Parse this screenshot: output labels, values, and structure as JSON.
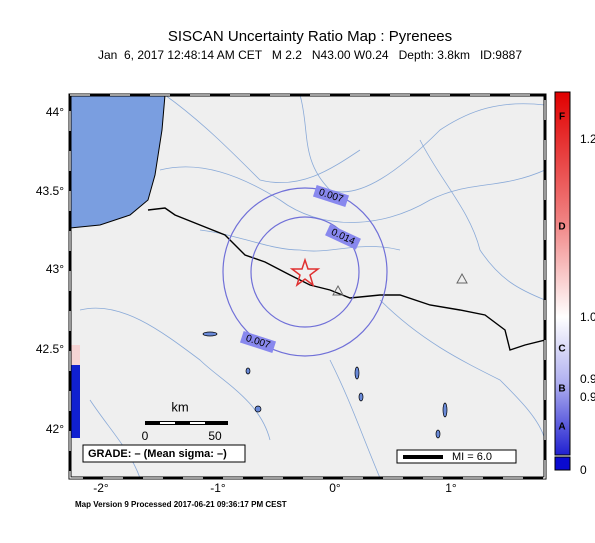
{
  "header": {
    "title": "SISCAN Uncertainty Ratio Map : Pyrenees",
    "subtitle": "Jan  6, 2017 12:48:14 AM CET   M 2.2   N43.00 W0.24   Depth: 3.8km   ID:9887"
  },
  "map": {
    "lat_labels": [
      "44°",
      "43.5°",
      "43°",
      "42.5°",
      "42°"
    ],
    "lon_labels": [
      "-2°",
      "-1°",
      "0°",
      "1°"
    ],
    "contour_labels": [
      "0.007",
      "0.014",
      "0.007"
    ],
    "scale": {
      "unit": "km",
      "start": "0",
      "end": "50"
    },
    "grade": "GRADE: – (Mean sigma: –)",
    "intensity_legend": "MI = 6.0"
  },
  "colorbar": {
    "letters": [
      "F",
      "D",
      "C",
      "B",
      "A"
    ],
    "values": [
      "1.2",
      "1.0",
      "0.9",
      "0.9",
      "0"
    ]
  },
  "footer": "Map Version 9 Processed 2017-06-21 09:36:17 PM CEST"
}
